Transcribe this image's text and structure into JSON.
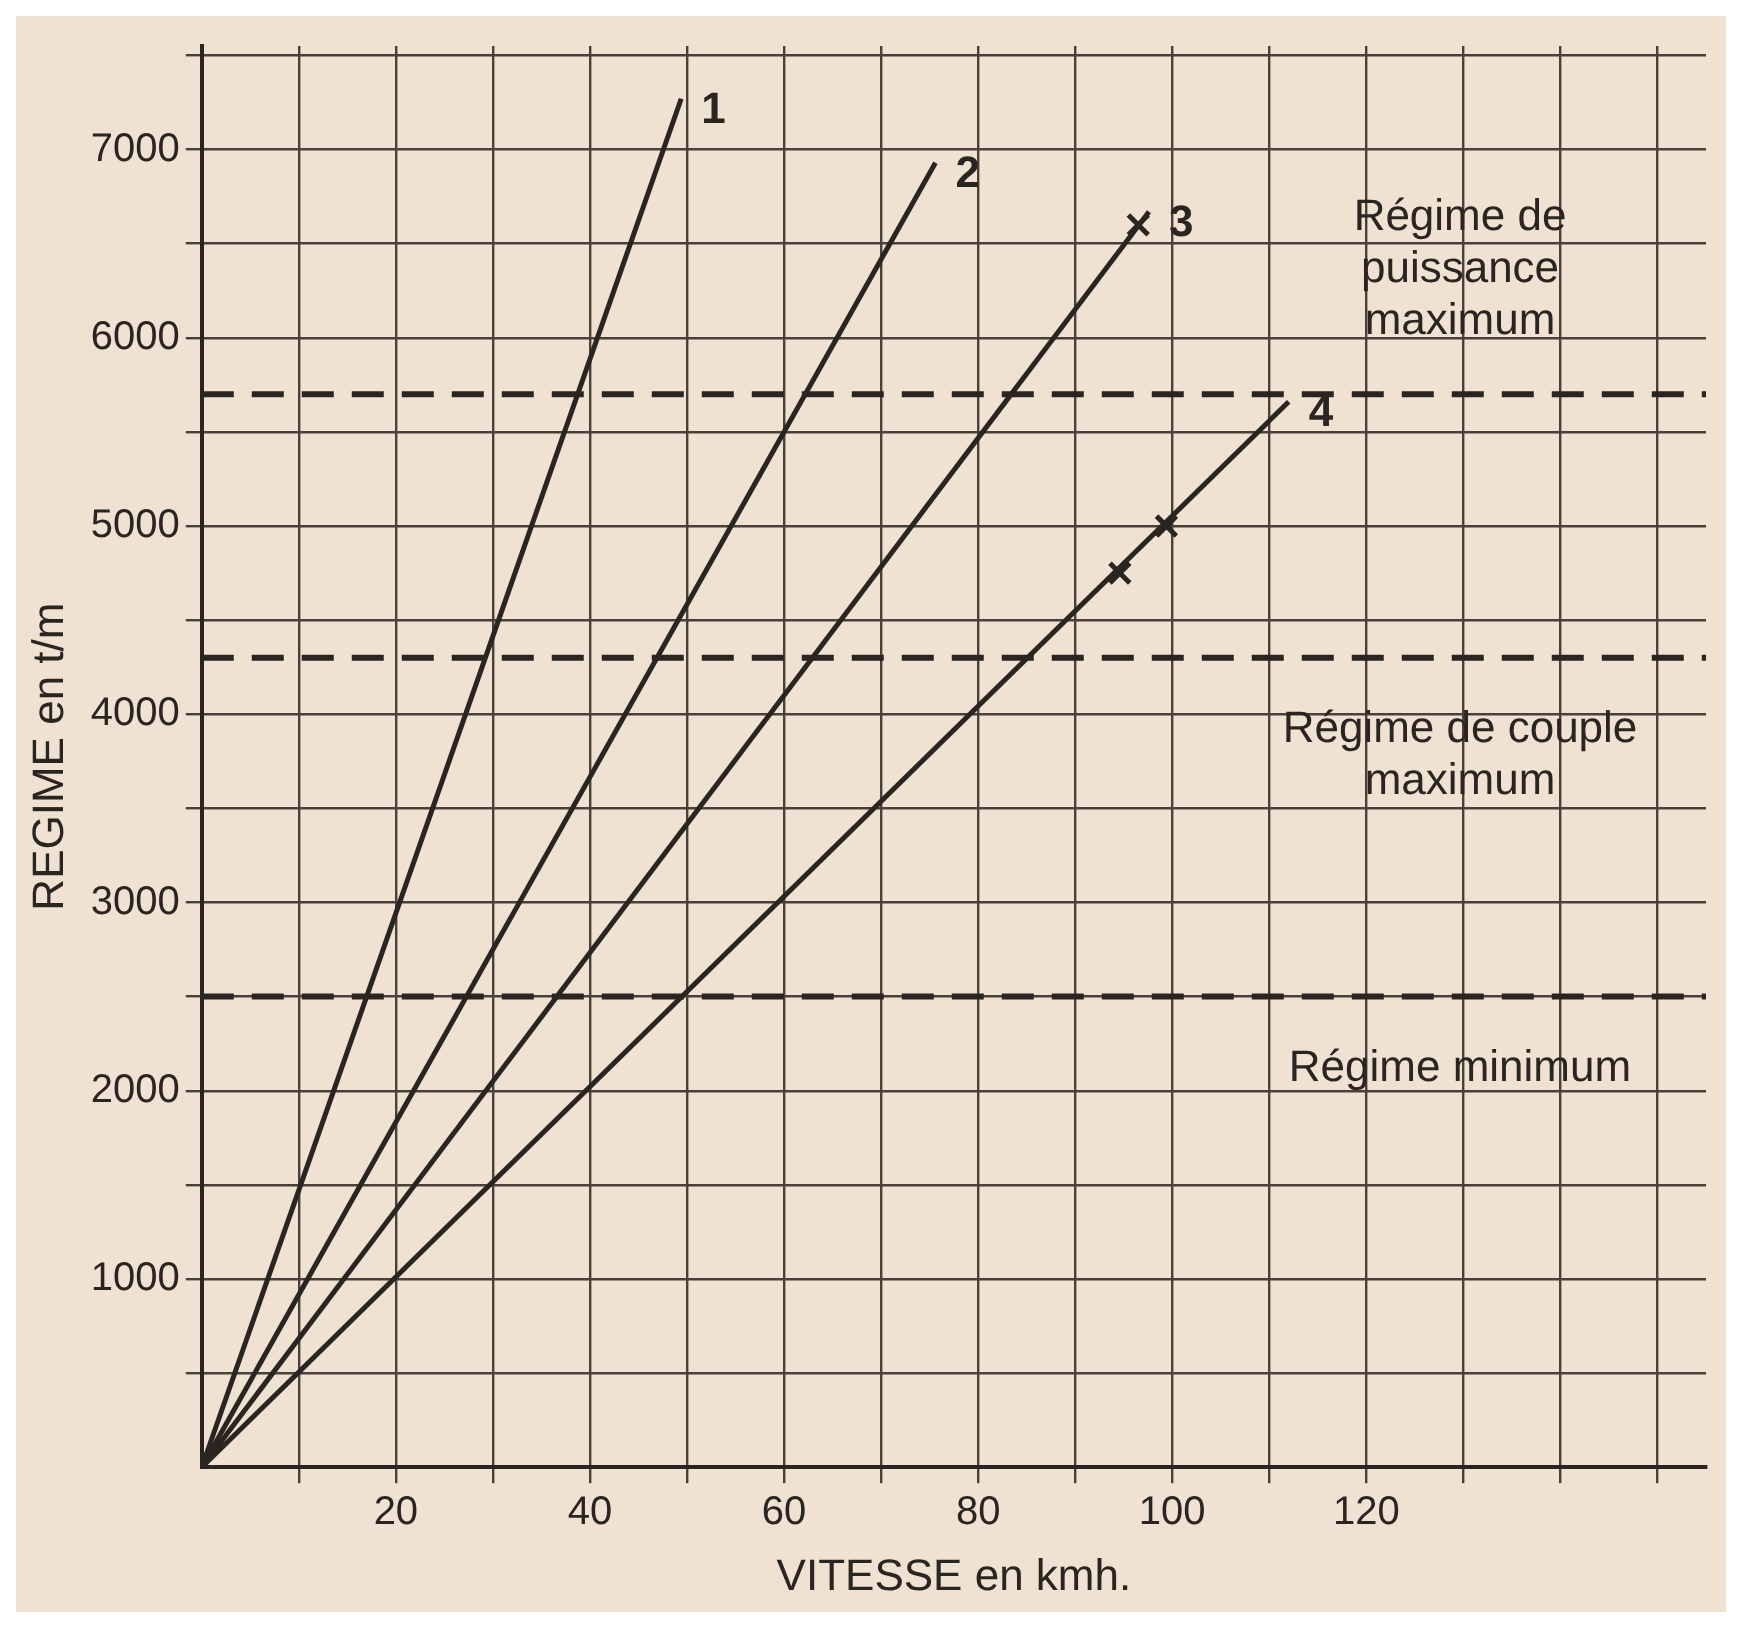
{
  "chart_data": {
    "type": "line",
    "xlabel": "VITESSE en kmh.",
    "ylabel": "REGIME en t/m",
    "xlim": [
      0,
      155
    ],
    "ylim": [
      0,
      7550
    ],
    "xticks": [
      {
        "value": 10,
        "label": null
      },
      20,
      {
        "value": 30,
        "label": null
      },
      40,
      {
        "value": 50,
        "label": null
      },
      60,
      {
        "value": 70,
        "label": null
      },
      80,
      {
        "value": 90,
        "label": null
      },
      100,
      {
        "value": 110,
        "label": null
      },
      120,
      {
        "value": 130,
        "label": null
      },
      {
        "value": 140,
        "label": null
      },
      {
        "value": 150,
        "label": null
      }
    ],
    "yticks": [
      {
        "value": 500,
        "label": null
      },
      1000,
      {
        "value": 1500,
        "label": null
      },
      2000,
      {
        "value": 2500,
        "label": null
      },
      3000,
      {
        "value": 3500,
        "label": null
      },
      4000,
      {
        "value": 4500,
        "label": null
      },
      5000,
      {
        "value": 5500,
        "label": null
      },
      6000,
      {
        "value": 6500,
        "label": null
      },
      7000,
      {
        "value": 7500,
        "label": null
      }
    ],
    "grid": true,
    "legend": false,
    "marker": "none",
    "line_style": "solid",
    "series": [
      {
        "name": "1",
        "color": "#2b2522",
        "x": [
          0,
          49.4
        ],
        "values": [
          0,
          7270
        ]
      },
      {
        "name": "2",
        "color": "#2b2522",
        "x": [
          0,
          75.6
        ],
        "values": [
          0,
          6930
        ]
      },
      {
        "name": "3",
        "color": "#2b2522",
        "x": [
          0,
          97.6
        ],
        "values": [
          0,
          6670
        ]
      },
      {
        "name": "4",
        "color": "#2b2522",
        "x": [
          0,
          112
        ],
        "values": [
          0,
          5660
        ]
      },
      {
        "type": "scatter",
        "marker": "cross",
        "color": "#2b2522",
        "x": [
          96.5,
          94.6,
          99.4
        ],
        "values": [
          6600,
          4750,
          5000
        ]
      }
    ],
    "ref_lines": [
      {
        "axis": "y",
        "value": 5700,
        "label": "Régime de puissance maximum",
        "line_style": "dashed",
        "color": "#2b2522"
      },
      {
        "axis": "y",
        "value": 4300,
        "label": "Régime de couple maximum",
        "line_style": "dashed",
        "color": "#2b2522"
      },
      {
        "axis": "y",
        "value": 2500,
        "label": "Régime minimum",
        "line_style": "dashed",
        "color": "#2b2522"
      }
    ]
  }
}
